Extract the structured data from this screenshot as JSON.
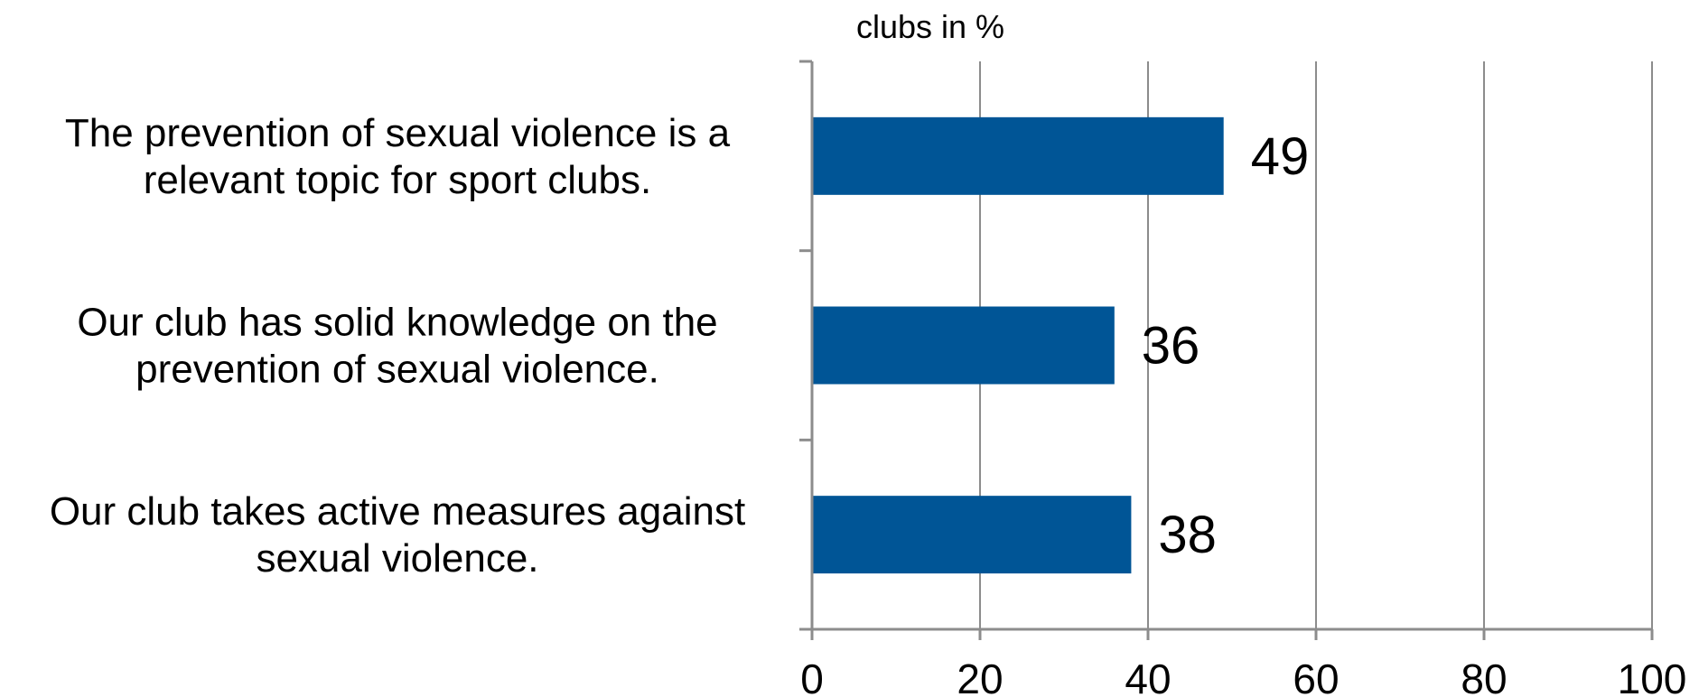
{
  "chart_data": {
    "type": "bar",
    "orientation": "horizontal",
    "title": "",
    "xlabel": "clubs in  %",
    "ylabel": "",
    "categories": [
      [
        "The prevention of sexual violence is a",
        "relevant topic for sport clubs."
      ],
      [
        "Our club has solid knowledge on the",
        "prevention of sexual violence."
      ],
      [
        "Our club takes active measures against",
        "sexual violence."
      ]
    ],
    "values": [
      49,
      36,
      38
    ],
    "xlim": [
      0,
      100
    ],
    "ticks": [
      0,
      20,
      40,
      60,
      80,
      100
    ],
    "grid": true,
    "legend": "none",
    "bar_color": "#005596"
  }
}
